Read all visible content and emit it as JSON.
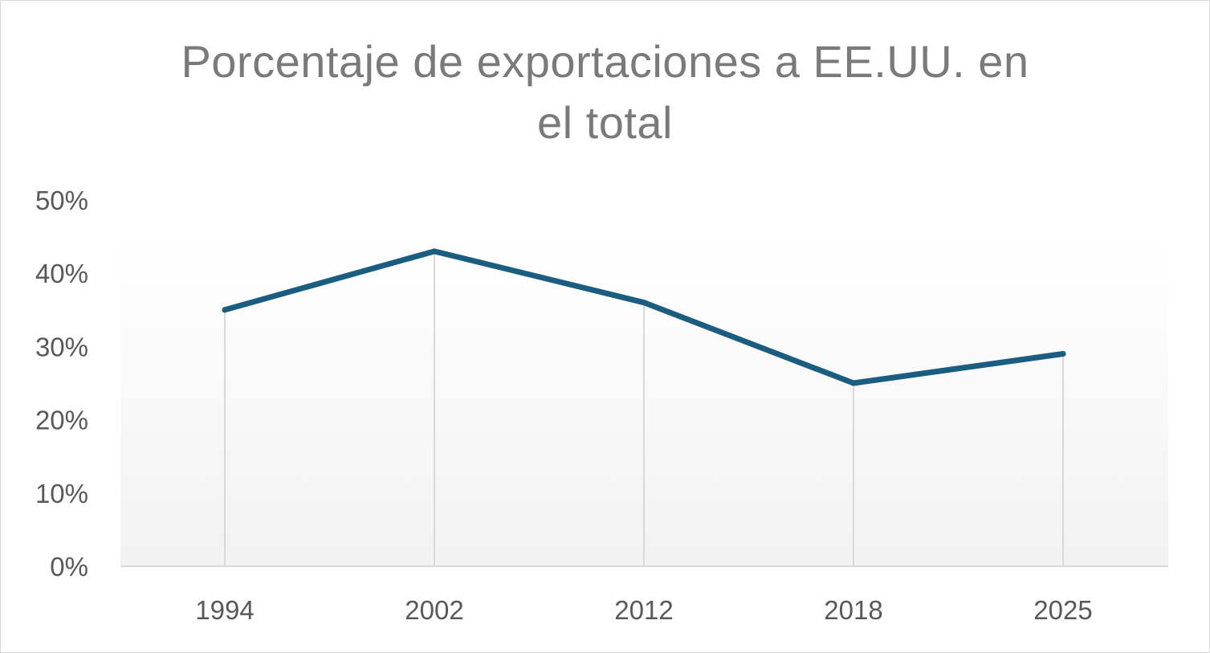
{
  "chart_data": {
    "type": "line",
    "title": "Porcentaje de exportaciones a EE.UU. en el total",
    "title_lines": [
      "Porcentaje de exportaciones a EE.UU. en",
      "el total"
    ],
    "categories": [
      "1994",
      "2002",
      "2012",
      "2018",
      "2025"
    ],
    "series": [
      {
        "name": "Porcentaje de exportaciones a EE.UU.",
        "values": [
          35,
          43,
          36,
          25,
          29
        ]
      }
    ],
    "ylim": [
      0,
      50
    ],
    "yticks": [
      0,
      10,
      20,
      30,
      40,
      50
    ],
    "ytick_labels": [
      "0%",
      "10%",
      "20%",
      "30%",
      "40%",
      "50%"
    ],
    "xlabel": "",
    "ylabel": "",
    "drop_lines": true,
    "legend": "none",
    "colors": {
      "line": "#1b5d80",
      "drop_line": "#d9d9d9",
      "axis": "#d9d9d9",
      "plot_gradient_top": "#ffffff",
      "plot_gradient_bottom": "#f2f2f2"
    }
  }
}
